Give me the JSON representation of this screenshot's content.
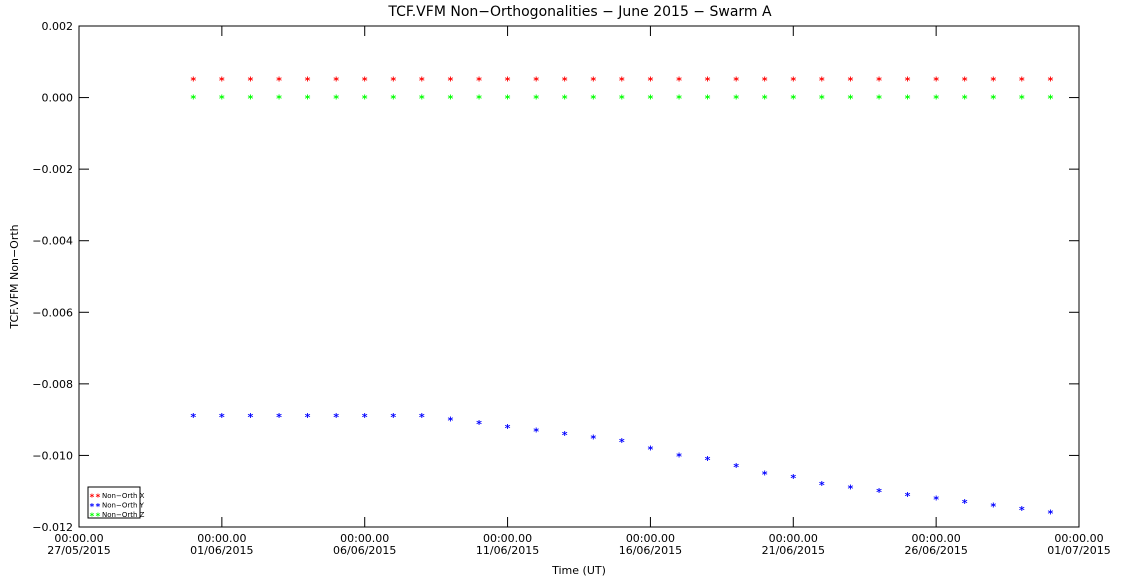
{
  "chart_data": {
    "type": "scatter",
    "title": "TCF.VFM Non−Orthogonalities − June 2015 − Swarm A",
    "xlabel": "Time (UT)",
    "ylabel": "TCF.VFM Non−Orth",
    "x_start": "2015-05-27",
    "xlim": [
      0,
      35
    ],
    "ylim": [
      -0.012,
      0.002
    ],
    "x_ticks": [
      {
        "x": 0,
        "time": "00:00.00",
        "date": "27/05/2015"
      },
      {
        "x": 5,
        "time": "00:00.00",
        "date": "01/06/2015"
      },
      {
        "x": 10,
        "time": "00:00.00",
        "date": "06/06/2015"
      },
      {
        "x": 15,
        "time": "00:00.00",
        "date": "11/06/2015"
      },
      {
        "x": 20,
        "time": "00:00.00",
        "date": "16/06/2015"
      },
      {
        "x": 25,
        "time": "00:00.00",
        "date": "21/06/2015"
      },
      {
        "x": 30,
        "time": "00:00.00",
        "date": "26/06/2015"
      },
      {
        "x": 35,
        "time": "00:00.00",
        "date": "01/07/2015"
      }
    ],
    "y_ticks": [
      0.002,
      0.0,
      -0.002,
      -0.004,
      -0.006,
      -0.008,
      -0.01,
      -0.012
    ],
    "y_tick_labels": [
      "0.002",
      "0.000",
      "−0.002",
      "−0.004",
      "−0.006",
      "−0.008",
      "−0.010",
      "−0.012"
    ],
    "x_values": [
      4,
      5,
      6,
      7,
      8,
      9,
      10,
      11,
      12,
      13,
      14,
      15,
      16,
      17,
      18,
      19,
      20,
      21,
      22,
      23,
      24,
      25,
      26,
      27,
      28,
      29,
      30,
      31,
      32,
      33,
      34
    ],
    "series": [
      {
        "name": "Non−Orth X",
        "color": "#ff0000",
        "values": [
          0.0005,
          0.0005,
          0.0005,
          0.0005,
          0.0005,
          0.0005,
          0.0005,
          0.0005,
          0.0005,
          0.0005,
          0.0005,
          0.0005,
          0.0005,
          0.0005,
          0.0005,
          0.0005,
          0.0005,
          0.0005,
          0.0005,
          0.0005,
          0.0005,
          0.0005,
          0.0005,
          0.0005,
          0.0005,
          0.0005,
          0.0005,
          0.0005,
          0.0005,
          0.0005,
          0.0005
        ]
      },
      {
        "name": "Non−Orth Y",
        "color": "#0000ff",
        "values": [
          -0.0089,
          -0.0089,
          -0.0089,
          -0.0089,
          -0.0089,
          -0.0089,
          -0.0089,
          -0.0089,
          -0.0089,
          -0.009,
          -0.0091,
          -0.0092,
          -0.0093,
          -0.0094,
          -0.0095,
          -0.0096,
          -0.0098,
          -0.01,
          -0.0101,
          -0.0103,
          -0.0105,
          -0.0106,
          -0.0108,
          -0.0109,
          -0.011,
          -0.0111,
          -0.0112,
          -0.0113,
          -0.0114,
          -0.0115,
          -0.0116
        ]
      },
      {
        "name": "Non−Orth Z",
        "color": "#00ff00",
        "values": [
          0.0,
          0.0,
          0.0,
          0.0,
          0.0,
          0.0,
          0.0,
          0.0,
          0.0,
          0.0,
          0.0,
          0.0,
          0.0,
          0.0,
          0.0,
          0.0,
          0.0,
          0.0,
          0.0,
          0.0,
          0.0,
          0.0,
          0.0,
          0.0,
          0.0,
          0.0,
          0.0,
          0.0,
          0.0,
          0.0,
          0.0
        ]
      }
    ],
    "marker": "*",
    "legend_position": "bottom-left",
    "grid": false
  }
}
